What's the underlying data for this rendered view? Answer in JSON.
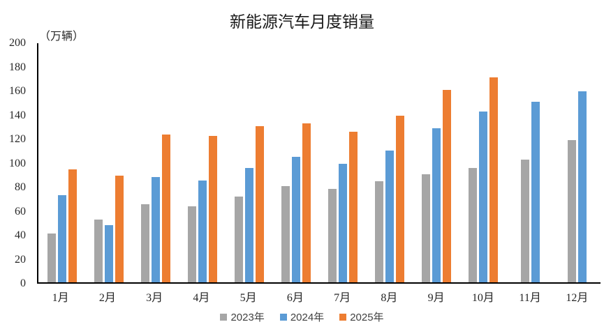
{
  "title": "新能源汽车月度销量",
  "chart_data": {
    "type": "bar",
    "title": "新能源汽车月度销量",
    "ylabel": "（万辆）",
    "xlabel": "",
    "ylim": [
      0,
      200
    ],
    "ytick_step": 20,
    "grid": false,
    "legend_position": "bottom",
    "categories": [
      "1月",
      "2月",
      "3月",
      "4月",
      "5月",
      "6月",
      "7月",
      "8月",
      "9月",
      "10月",
      "11月",
      "12月"
    ],
    "series": [
      {
        "name": "2023年",
        "color": "#A6A6A6",
        "values": [
          40.8,
          52.5,
          65.3,
          63.6,
          71.7,
          80.6,
          78.0,
          84.6,
          90.4,
          95.6,
          102.6,
          119.1
        ]
      },
      {
        "name": "2024年",
        "color": "#5B9BD5",
        "values": [
          72.9,
          47.7,
          88.3,
          85.0,
          95.5,
          104.9,
          99.1,
          110.0,
          128.7,
          143.0,
          151.2,
          159.6
        ]
      },
      {
        "name": "2025年",
        "color": "#ED7D31",
        "values": [
          94.4,
          89.2,
          123.7,
          122.6,
          130.7,
          132.9,
          126.2,
          139.5,
          160.9,
          171.5,
          null,
          null
        ]
      }
    ]
  }
}
